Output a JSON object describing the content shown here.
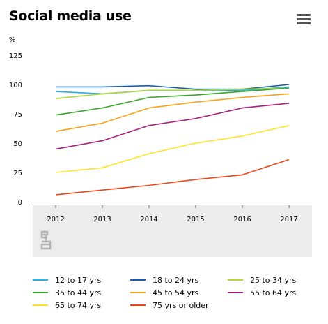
{
  "title": "Social media use",
  "menu_icon": "hamburger-menu-icon",
  "chart_data": {
    "type": "line",
    "ylabel": "%",
    "ylim": [
      0,
      125
    ],
    "yticks": [
      0,
      25,
      50,
      75,
      100,
      125
    ],
    "x": [
      "2012",
      "2013",
      "2014",
      "2015",
      "2016",
      "2017"
    ],
    "grid": false,
    "legend_position": "bottom",
    "series": [
      {
        "name": "12 to 17 yrs",
        "color": "#2aaee3",
        "values": [
          94,
          92,
          95,
          95,
          95,
          98
        ]
      },
      {
        "name": "18 to 24 yrs",
        "color": "#1a5cb0",
        "values": [
          98,
          98,
          99,
          96,
          96,
          100
        ]
      },
      {
        "name": "25 to 34 yrs",
        "color": "#b0d63a",
        "values": [
          88,
          92,
          95,
          95,
          96,
          97
        ]
      },
      {
        "name": "35 to 44 yrs",
        "color": "#3aa62c",
        "values": [
          74,
          80,
          89,
          91,
          94,
          97
        ]
      },
      {
        "name": "45 to 54 yrs",
        "color": "#f7a21b",
        "values": [
          60,
          67,
          80,
          85,
          89,
          92
        ]
      },
      {
        "name": "55 to 64 yrs",
        "color": "#a8207f",
        "values": [
          45,
          52,
          65,
          71,
          80,
          84
        ]
      },
      {
        "name": "65 to 74 yrs",
        "color": "#ffe32b",
        "values": [
          25,
          29,
          41,
          50,
          56,
          65
        ]
      },
      {
        "name": "75 yrs or older",
        "color": "#e9471a",
        "values": [
          6,
          10,
          14,
          19,
          23,
          36
        ]
      }
    ]
  }
}
